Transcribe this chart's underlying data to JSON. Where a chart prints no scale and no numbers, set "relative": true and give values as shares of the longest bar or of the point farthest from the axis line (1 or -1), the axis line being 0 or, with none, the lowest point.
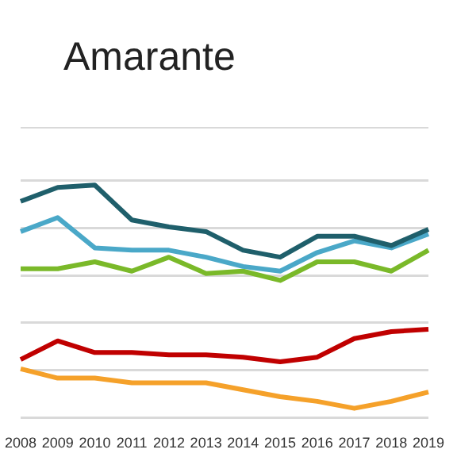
{
  "chart_data": {
    "type": "line",
    "title": "Amarante",
    "relative": true,
    "grid": "y",
    "legend": false,
    "marker": "none",
    "categories": [
      "2008",
      "2009",
      "2010",
      "2011",
      "2012",
      "2013",
      "2014",
      "2015",
      "2016",
      "2017",
      "2018",
      "2019"
    ],
    "series": [
      {
        "color": "#1f5f6b",
        "values": [
          0.93,
          0.99,
          1.0,
          0.85,
          0.82,
          0.8,
          0.72,
          0.69,
          0.78,
          0.78,
          0.74,
          0.81
        ]
      },
      {
        "color": "#4aa8c8",
        "values": [
          0.8,
          0.86,
          0.73,
          0.72,
          0.72,
          0.69,
          0.65,
          0.63,
          0.71,
          0.76,
          0.73,
          0.79
        ]
      },
      {
        "color": "#7ab929",
        "values": [
          0.64,
          0.64,
          0.67,
          0.63,
          0.69,
          0.62,
          0.63,
          0.59,
          0.67,
          0.67,
          0.63,
          0.72
        ]
      },
      {
        "color": "#c00000",
        "values": [
          0.25,
          0.33,
          0.28,
          0.28,
          0.27,
          0.27,
          0.26,
          0.24,
          0.26,
          0.34,
          0.37,
          0.38
        ]
      },
      {
        "color": "#f5a12a",
        "values": [
          0.21,
          0.17,
          0.17,
          0.15,
          0.15,
          0.15,
          0.12,
          0.09,
          0.07,
          0.04,
          0.07,
          0.11
        ]
      }
    ]
  }
}
